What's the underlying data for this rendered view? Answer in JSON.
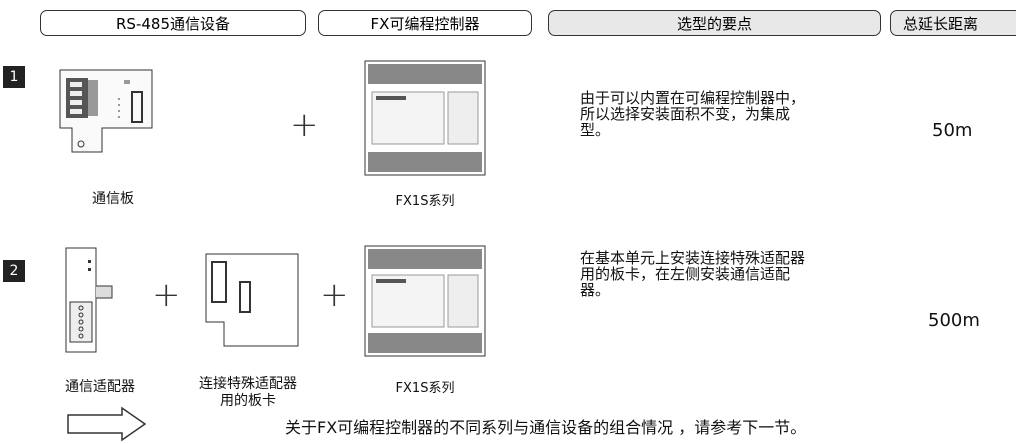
{
  "header": {
    "columns": [
      "RS-485通信设备",
      "FX可编程控制器",
      "选型的要点",
      "总延长距离"
    ]
  },
  "rows": [
    {
      "number": "1",
      "items": [
        {
          "label": [
            "通信板"
          ]
        },
        {
          "label": [
            "FX1S系列"
          ]
        }
      ],
      "note": [
        "由于可以内置在可编程控制器中，",
        "所以选择安装面积不变，为集成",
        "型。"
      ],
      "distance": "50m"
    },
    {
      "number": "2",
      "items": [
        {
          "label": [
            "通信适配器"
          ]
        },
        {
          "label": [
            "连接特殊适配器",
            "用的板卡"
          ]
        },
        {
          "label": [
            "FX1S系列"
          ]
        }
      ],
      "note": [
        "在基本单元上安装连接特殊适配器",
        "用的板卡，在左侧安装通信适配",
        "器。"
      ],
      "distance": "500m"
    }
  ],
  "footer": {
    "text": "关于FX可编程控制器的不同系列与通信设备的组合情况 ，请参考下一节。"
  }
}
